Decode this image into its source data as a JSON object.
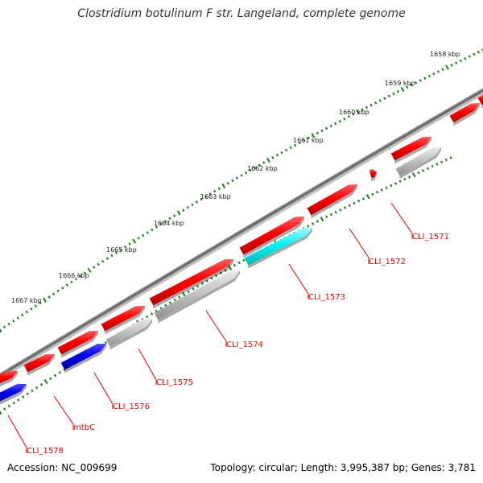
{
  "title": "Clostridium botulinum F str. Langeland, complete genome",
  "footer": {
    "accession": "Accession: NC_009699",
    "summary": "Topology: circular; Length: 3,995,387 bp; Genes: 3,781"
  },
  "colors": {
    "backbone": "#7a7a7a",
    "tick": "#1a7a1a",
    "gene_red": "#ff0000",
    "gene_blue": "#0000e6",
    "gene_cyan": "#00ffff",
    "gene_gray": "#c8c8c8",
    "label": "#e00000"
  },
  "tick_labels": [
    "1658 kbp",
    "1659 kbp",
    "1660 kbp",
    "1661 kbp",
    "1662 kbp",
    "1663 kbp",
    "1664 kbp",
    "1665 kbp",
    "1666 kbp",
    "1667 kbp"
  ],
  "gene_labels": [
    "CLI_1571",
    "CLI_1572",
    "CLI_1573",
    "CLI_1574",
    "CLI_1575",
    "CLI_1576",
    "mtbC",
    "CLI_1578"
  ]
}
